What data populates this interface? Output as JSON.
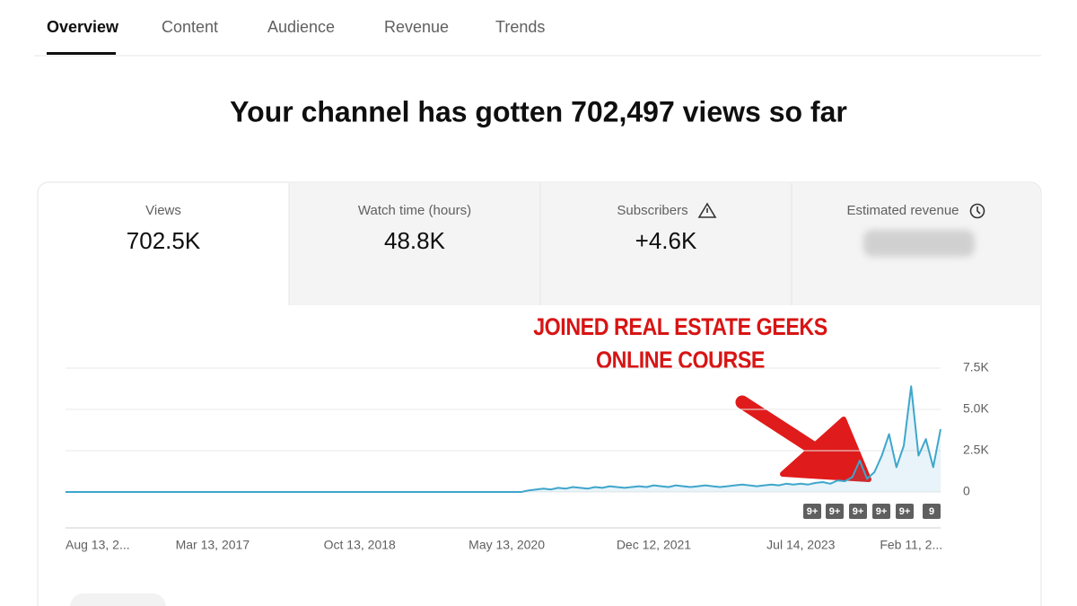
{
  "tabs": [
    "Overview",
    "Content",
    "Audience",
    "Revenue",
    "Trends"
  ],
  "headline": "Your channel has gotten 702,497 views so far",
  "metrics": [
    {
      "label": "Views",
      "value": "702.5K"
    },
    {
      "label": "Watch time (hours)",
      "value": "48.8K"
    },
    {
      "label": "Subscribers",
      "value": "+4.6K"
    },
    {
      "label": "Estimated revenue"
    }
  ],
  "chart_data": {
    "type": "line",
    "annotation": [
      "JOINED REAL ESTATE GEEKS",
      "ONLINE COURSE"
    ],
    "categories": [
      "Aug 13, 2...",
      null,
      null,
      null,
      null,
      null,
      null,
      null,
      null,
      null,
      null,
      null,
      null,
      null,
      null,
      null,
      null,
      null,
      null,
      null,
      "Mar 13, 2017",
      null,
      null,
      null,
      null,
      null,
      null,
      null,
      null,
      null,
      null,
      null,
      null,
      null,
      null,
      null,
      null,
      null,
      null,
      null,
      "Oct 13, 2018",
      null,
      null,
      null,
      null,
      null,
      null,
      null,
      null,
      null,
      null,
      null,
      null,
      null,
      null,
      null,
      null,
      null,
      null,
      null,
      "May 13, 2020",
      null,
      null,
      null,
      null,
      null,
      null,
      null,
      null,
      null,
      null,
      null,
      null,
      null,
      null,
      null,
      null,
      null,
      null,
      null,
      "Dec 12, 2021",
      null,
      null,
      null,
      null,
      null,
      null,
      null,
      null,
      null,
      null,
      null,
      null,
      null,
      null,
      null,
      null,
      null,
      null,
      null,
      "Jul 14, 2023",
      null,
      null,
      null,
      null,
      null,
      null,
      null,
      null,
      null,
      null,
      null,
      null,
      null,
      null,
      "Feb 11, 2...",
      null,
      null,
      null,
      null
    ],
    "values": [
      0,
      0,
      0,
      0,
      0,
      0,
      0,
      0,
      0,
      0,
      0,
      0,
      0,
      0,
      0,
      0,
      0,
      0,
      0,
      0,
      0,
      0,
      0,
      0,
      0,
      0,
      0,
      0,
      0,
      0,
      0,
      0,
      0,
      0,
      0,
      0,
      0,
      0,
      0,
      0,
      0,
      0,
      0,
      0,
      0,
      0,
      0,
      0,
      0,
      0,
      0,
      0,
      0,
      0,
      0,
      0,
      0,
      0,
      0,
      0,
      0,
      0,
      0,
      100,
      150,
      200,
      150,
      250,
      200,
      300,
      250,
      200,
      300,
      250,
      350,
      300,
      250,
      300,
      350,
      300,
      400,
      350,
      300,
      400,
      350,
      300,
      350,
      400,
      350,
      300,
      350,
      400,
      450,
      400,
      350,
      400,
      450,
      400,
      500,
      450,
      500,
      450,
      550,
      600,
      500,
      700,
      650,
      900,
      1900,
      800,
      1200,
      2200,
      3500,
      1500,
      2800,
      6400,
      2200,
      3200,
      1500,
      3800
    ],
    "color": "#3ea6cc",
    "ylim": [
      0,
      7500
    ],
    "yticks": [
      0,
      {
        "value": 2500,
        "label": "2.5K"
      },
      {
        "value": 5000,
        "label": "5.0K"
      },
      {
        "value": 7500,
        "label": "7.5K"
      }
    ],
    "grid": true,
    "markers": [
      "9+",
      "9+",
      "9+",
      "9+",
      "9+",
      "9"
    ]
  }
}
